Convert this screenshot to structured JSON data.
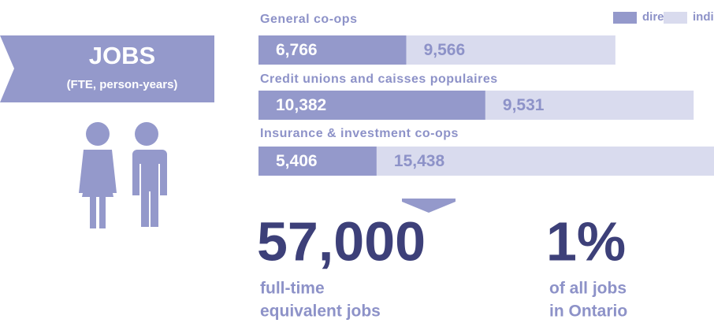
{
  "chart_data": {
    "type": "bar",
    "orientation": "horizontal",
    "stacked": true,
    "categories": [
      "General co-ops",
      "Credit unions and caisses populaires",
      "Insurance & investment co-ops"
    ],
    "series": [
      {
        "name": "direct",
        "color": "#9499cb",
        "label_color": "#ffffff",
        "values": [
          6766,
          10382,
          5406
        ],
        "value_labels": [
          "6,766",
          "10,382",
          "5,406"
        ]
      },
      {
        "name": "indirect",
        "color": "#d9dbee",
        "label_color": "#8d92c8",
        "values": [
          9566,
          9531,
          15438
        ],
        "value_labels": [
          "9,566",
          "9,531",
          "15,438"
        ]
      }
    ],
    "legend": "top-right"
  },
  "banner": {
    "title": "JOBS",
    "subtitle": "(FTE, person-years)"
  },
  "total": {
    "value": "57,000",
    "lines": [
      "full-time",
      "equivalent jobs"
    ]
  },
  "share": {
    "value": "1%",
    "lines": [
      "of all jobs",
      "in Ontario"
    ]
  }
}
